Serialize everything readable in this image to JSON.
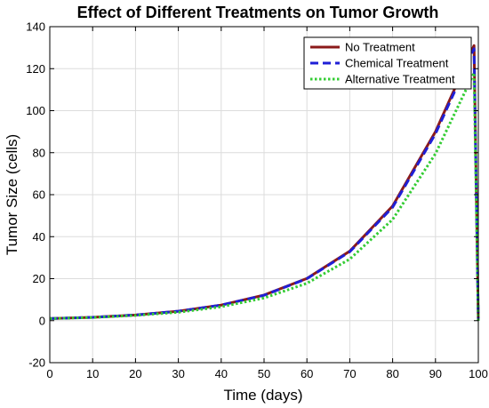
{
  "chart_data": {
    "type": "line",
    "title": "Effect of Different Treatments on Tumor Growth",
    "xlabel": "Time (days)",
    "ylabel": "Tumor Size (cells)",
    "xlim": [
      0,
      100
    ],
    "ylim": [
      -20,
      140
    ],
    "xticks": [
      0,
      10,
      20,
      30,
      40,
      50,
      60,
      70,
      80,
      90,
      100
    ],
    "yticks": [
      -20,
      0,
      20,
      40,
      60,
      80,
      100,
      120,
      140
    ],
    "grid": true,
    "legend_position": "top-right",
    "x": [
      0,
      10,
      20,
      30,
      40,
      50,
      60,
      70,
      80,
      90,
      99,
      100
    ],
    "series": [
      {
        "name": "No Treatment",
        "color": "#8b1a1a",
        "dash": "solid",
        "values": [
          1.0,
          1.6,
          2.7,
          4.5,
          7.4,
          12.2,
          20.1,
          33.1,
          54.6,
          90.0,
          131.0,
          0
        ]
      },
      {
        "name": "Chemical Treatment",
        "color": "#1f1fd6",
        "dash": "dashed",
        "values": [
          1.0,
          1.6,
          2.7,
          4.5,
          7.4,
          12.1,
          20.0,
          32.8,
          54.0,
          89.0,
          129.5,
          0
        ]
      },
      {
        "name": "Alternative Treatment",
        "color": "#33cc33",
        "dash": "dotted",
        "values": [
          1.0,
          1.5,
          2.5,
          4.0,
          6.6,
          10.8,
          17.8,
          29.3,
          48.2,
          79.5,
          118.0,
          0
        ]
      }
    ]
  }
}
